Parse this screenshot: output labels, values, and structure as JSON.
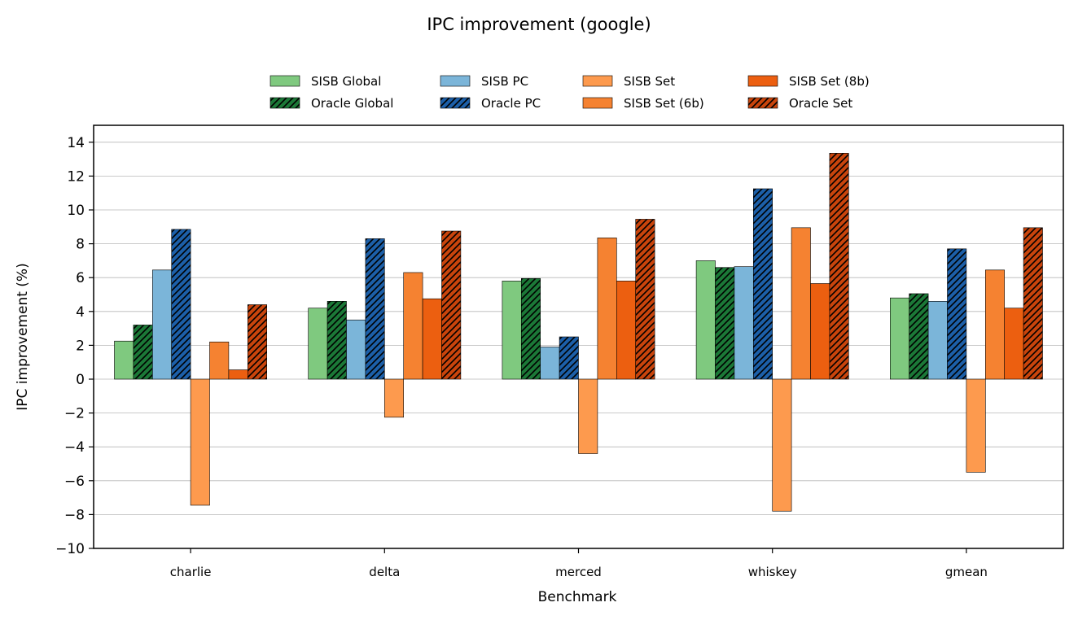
{
  "chart_data": {
    "type": "bar",
    "title": "IPC improvement (google)",
    "xlabel": "Benchmark",
    "ylabel": "IPC improvement (%)",
    "ylim": [
      -10,
      15
    ],
    "yticks": [
      -10,
      -8,
      -6,
      -4,
      -2,
      0,
      2,
      4,
      6,
      8,
      10,
      12,
      14
    ],
    "grid": "y",
    "legend": "top-center, 4 columns",
    "categories": [
      "charlie",
      "delta",
      "merced",
      "whiskey",
      "gmean"
    ],
    "series": [
      {
        "name": "SISB Global",
        "color": "#7fc97f",
        "hatch": false,
        "values": [
          2.25,
          4.2,
          5.8,
          7.0,
          4.8
        ]
      },
      {
        "name": "Oracle Global",
        "color": "#1b7837",
        "hatch": true,
        "values": [
          3.2,
          4.6,
          5.95,
          6.6,
          5.05
        ]
      },
      {
        "name": "SISB PC",
        "color": "#7bb5d9",
        "hatch": false,
        "values": [
          6.45,
          3.5,
          1.9,
          6.65,
          4.6
        ]
      },
      {
        "name": "Oracle PC",
        "color": "#1c5fa8",
        "hatch": true,
        "values": [
          8.85,
          8.3,
          2.5,
          11.25,
          7.7
        ]
      },
      {
        "name": "SISB Set",
        "color": "#fd9a4e",
        "hatch": false,
        "values": [
          -7.45,
          -2.25,
          -4.4,
          -7.8,
          -5.5
        ]
      },
      {
        "name": "SISB Set (6b)",
        "color": "#f58231",
        "hatch": false,
        "values": [
          2.2,
          6.3,
          8.35,
          8.95,
          6.45
        ]
      },
      {
        "name": "SISB Set (8b)",
        "color": "#ec5f10",
        "hatch": false,
        "values": [
          0.55,
          4.75,
          5.8,
          5.65,
          4.2
        ]
      },
      {
        "name": "Oracle Set",
        "color": "#c9440c",
        "hatch": true,
        "values": [
          4.4,
          8.75,
          9.45,
          13.35,
          8.95
        ]
      }
    ]
  }
}
